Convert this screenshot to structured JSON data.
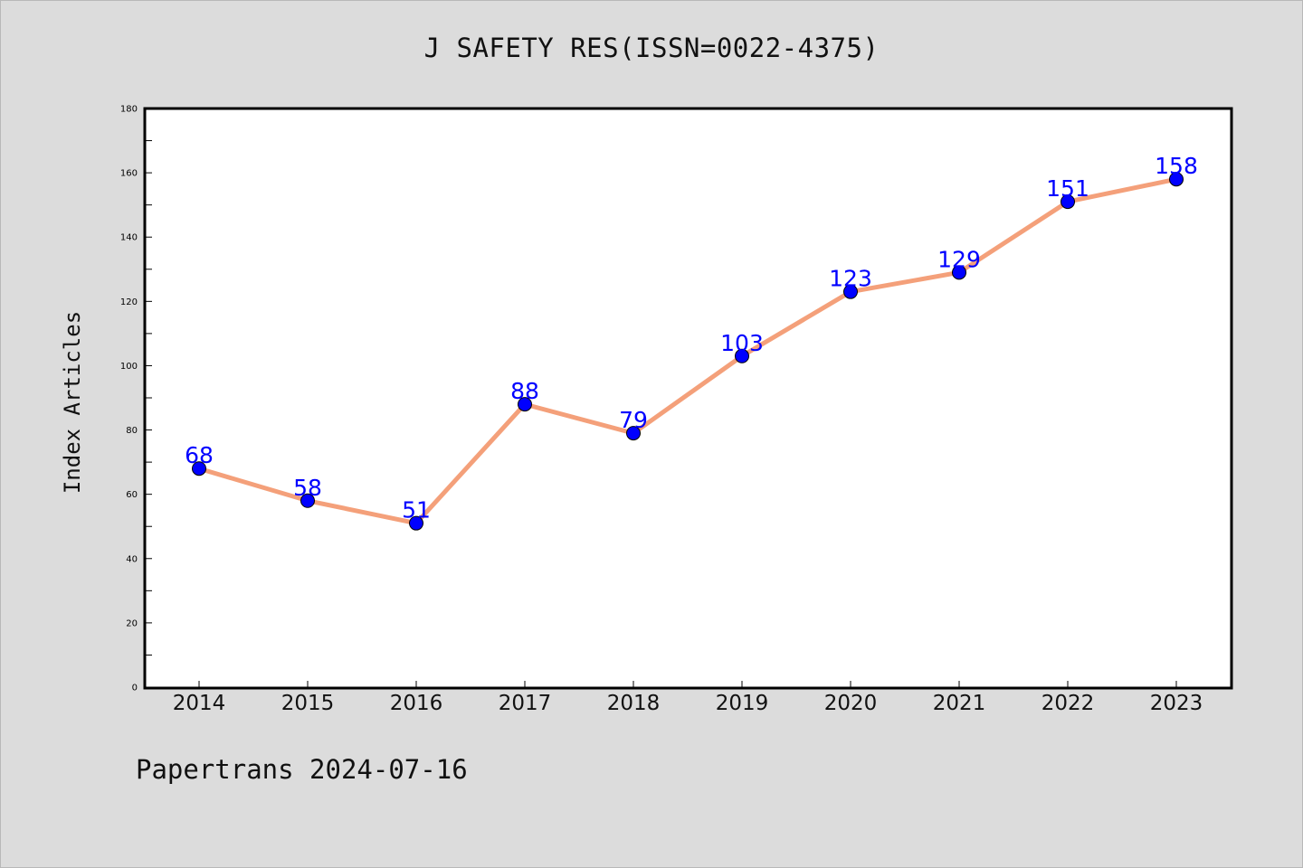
{
  "title": "J SAFETY RES(ISSN=0022-4375)",
  "footer": "Papertrans 2024-07-16",
  "chart_data": {
    "type": "line",
    "title": "J SAFETY RES(ISSN=0022-4375)",
    "xlabel": "",
    "ylabel": "Index Articles",
    "categories": [
      "2014",
      "2015",
      "2016",
      "2017",
      "2018",
      "2019",
      "2020",
      "2021",
      "2022",
      "2023"
    ],
    "series": [
      {
        "values": [
          68,
          58,
          51,
          88,
          79,
          103,
          123,
          129,
          151,
          158
        ]
      }
    ],
    "data_labels": [
      "68",
      "58",
      "51",
      "88",
      "79",
      "103",
      "123",
      "129",
      "151",
      "158"
    ],
    "ylim": [
      0,
      180
    ],
    "yticks": [
      0,
      20,
      40,
      60,
      80,
      100,
      120,
      140,
      160,
      180
    ],
    "yticks_minor": [
      10,
      30,
      50,
      70,
      90,
      110,
      130,
      150,
      170
    ],
    "grid": false,
    "line_color": "#f4a07a",
    "marker_color": "#0000ff",
    "label_color": "#0000ff",
    "plot_background": "#ffffff",
    "figure_background": "#dcdcdc"
  }
}
